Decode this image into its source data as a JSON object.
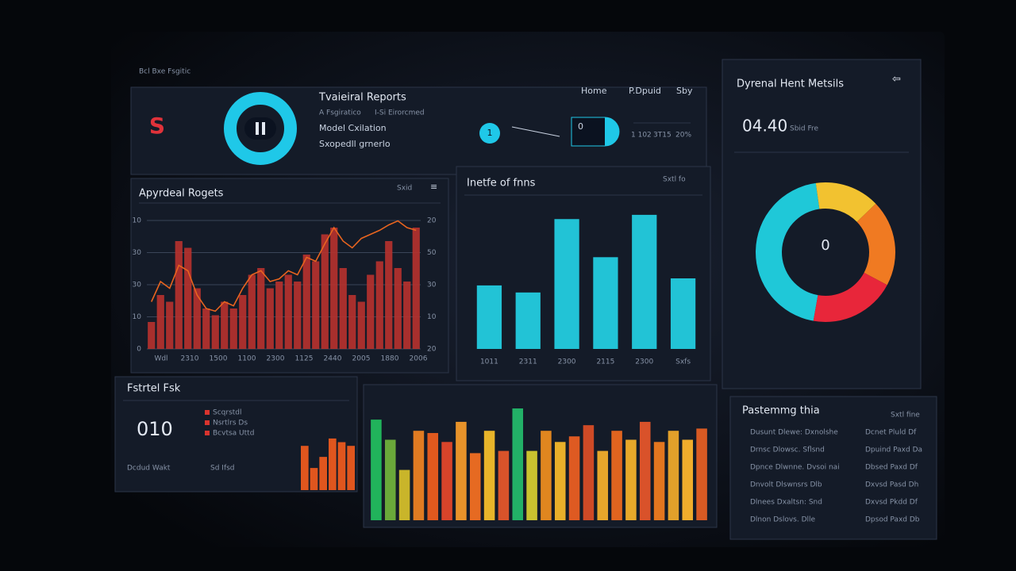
{
  "header": {
    "label": "Bcl Bxe Fsgitic",
    "logo": "S",
    "title": "Tvaieiral Reports",
    "subtitle": "A Fsgiratico",
    "subtitle_right": "I-Si Eirorcmed",
    "lines": [
      "Model Cxilation",
      "Sxopedll grnerlo"
    ],
    "nav": [
      "Home",
      "P.Dpuid",
      "Sby"
    ],
    "gauge": "1",
    "dial": "0",
    "stats": [
      "1 102",
      "3T15",
      "20%"
    ]
  },
  "metrics": {
    "title": "Dyrenal Hent Metsils",
    "value": "04.40",
    "unit": "Sbid Fre",
    "center": "0",
    "donut": {
      "values": [
        45,
        15,
        20,
        20
      ],
      "colors": [
        "#1fc8d8",
        "#f2c230",
        "#f07a22",
        "#e8263a"
      ]
    }
  },
  "trend": {
    "title": "Apyrdeal Rogets",
    "menu": "Sxid",
    "left_labels": [
      "10",
      "30",
      "30",
      "10",
      "0"
    ],
    "right_labels": [
      "20",
      "50",
      "30",
      "10",
      "20"
    ],
    "x_labels": [
      "Wdl",
      "2310",
      "1500",
      "1100",
      "2300",
      "1125",
      "2440",
      "2005",
      "1880",
      "2006"
    ],
    "ylim": [
      0,
      100
    ],
    "bars": [
      20,
      40,
      35,
      80,
      75,
      45,
      30,
      25,
      35,
      30,
      40,
      55,
      60,
      45,
      50,
      55,
      50,
      70,
      65,
      85,
      90,
      60,
      40,
      35,
      55,
      65,
      80,
      60,
      50,
      90
    ],
    "line": [
      35,
      50,
      45,
      62,
      58,
      40,
      30,
      28,
      35,
      32,
      45,
      55,
      58,
      50,
      52,
      58,
      55,
      68,
      65,
      78,
      90,
      80,
      75,
      82,
      85,
      88,
      92,
      95,
      90,
      88
    ],
    "bar_color": "#b8322e",
    "line_color": "#e8641f"
  },
  "columns": {
    "title": "Inetfe of fnns",
    "menu": "Sxtl fo",
    "x_labels": [
      "1011",
      "2311",
      "2300",
      "2115",
      "2300",
      "Sxfs"
    ],
    "ylim": [
      0,
      100
    ],
    "values": [
      45,
      40,
      92,
      65,
      95,
      50
    ],
    "color": "#22c3d6"
  },
  "tasks": {
    "title": "Fstrtel Fsk",
    "value": "010",
    "legend": [
      "Scqrstdl",
      "Nsrtlrs Ds",
      "Bcvtsa Uttd"
    ],
    "notes": [
      "Dcdud Wakt",
      "Sd Ifsd"
    ],
    "ylim": [
      0,
      100
    ],
    "values": [
      60,
      30,
      45,
      70,
      65,
      60
    ],
    "color": "#e0561e"
  },
  "activity": {
    "ylim": [
      0,
      100
    ],
    "values": [
      90,
      72,
      45,
      80,
      78,
      70,
      88,
      60,
      80,
      62,
      100,
      62,
      80,
      70,
      75,
      85,
      62,
      80,
      72,
      88,
      70,
      80,
      72,
      82
    ],
    "colors": [
      "#21b35b",
      "#6aa83a",
      "#c9b52a",
      "#e07b22",
      "#e0591e",
      "#d8442a",
      "#e8932a",
      "#e66a22",
      "#e8b52a",
      "#d9532a",
      "#22b067",
      "#c9c22f",
      "#e0861f",
      "#e8af2a",
      "#de5a22",
      "#cf4a26",
      "#e6a62b",
      "#e0641f",
      "#e7a82a",
      "#d9522a",
      "#e3761f",
      "#e2a02a",
      "#f0ad2c",
      "#d85a23"
    ]
  },
  "list": {
    "title": "Pastemmg thia",
    "menu": "Sxtl fine",
    "rows": [
      [
        "Dusunt Dlewe: Dxnolshe",
        "Dcnet Pluld Df"
      ],
      [
        "Drnsc Dlowsc. Sflsnd",
        "Dpuind Paxd Da"
      ],
      [
        "Dpnce Dlwnne. Dvsoi nai",
        "Dbsed Paxd Df"
      ],
      [
        "Dnvolt Dlswnsrs Dlb",
        "Dxvsd Pasd Dh"
      ],
      [
        "Dlnees Dxaltsn: Snd",
        "Dxvsd Pkdd Df"
      ],
      [
        "Dlnon Dslovs. Dlle",
        "Dpsod Paxd Db"
      ]
    ]
  }
}
